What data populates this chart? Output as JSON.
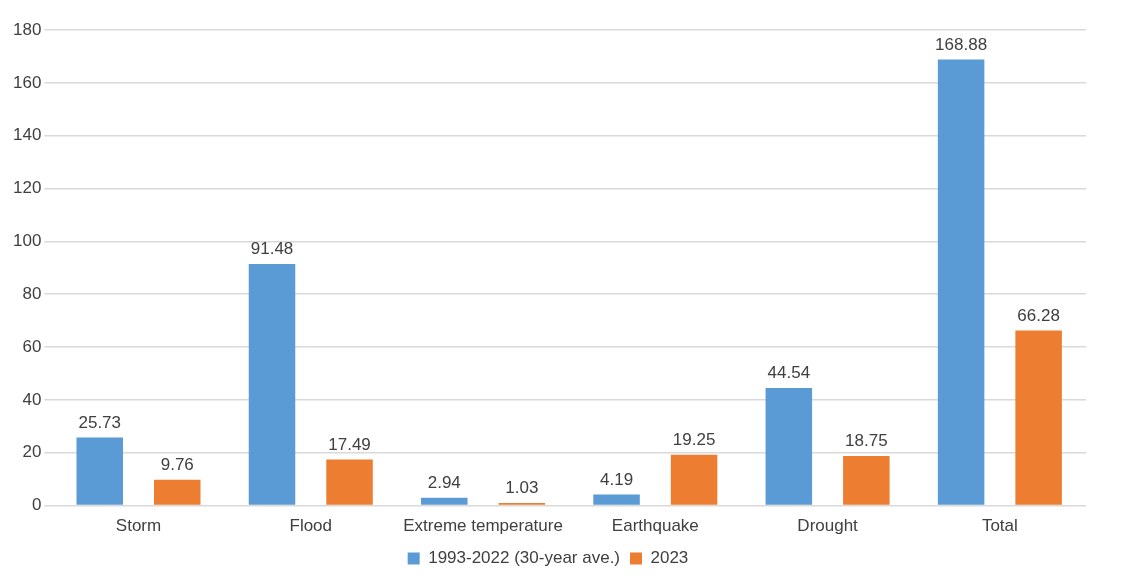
{
  "chart_data": {
    "type": "bar",
    "categories": [
      "Storm",
      "Flood",
      "Extreme temperature",
      "Earthquake",
      "Drought",
      "Total"
    ],
    "series": [
      {
        "name": "1993-2022 (30-year ave.)",
        "color": "#5b9bd5",
        "values": [
          25.73,
          91.48,
          2.94,
          4.19,
          44.54,
          168.88
        ]
      },
      {
        "name": "2023",
        "color": "#ed7d31",
        "values": [
          9.76,
          17.49,
          1.03,
          19.25,
          18.75,
          66.28
        ]
      }
    ],
    "ylim": [
      0,
      180
    ],
    "yticks": [
      0,
      20,
      40,
      60,
      80,
      100,
      120,
      140,
      160,
      180
    ],
    "grid": "y",
    "legend": "bottom",
    "data_labels": true
  }
}
